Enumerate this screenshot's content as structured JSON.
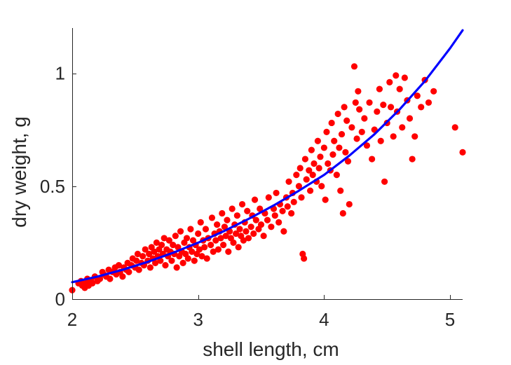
{
  "chart_data": {
    "type": "scatter",
    "title": "",
    "xlabel": "shell length, cm",
    "ylabel": "dry weight, g",
    "xlim": [
      2,
      5.1
    ],
    "ylim": [
      0,
      1.2
    ],
    "xticks": [
      2,
      3,
      4,
      5
    ],
    "xtick_labels": [
      "2",
      "3",
      "4",
      "5"
    ],
    "yticks": [
      0,
      0.5,
      1
    ],
    "ytick_labels": [
      "0",
      "0.5",
      "1"
    ],
    "grid": false,
    "legend": "none",
    "colors": {
      "points": "#ff0000",
      "fit": "#0000ff",
      "axes": "#262626"
    },
    "series": [
      {
        "type": "scatter",
        "points": [
          [
            2.0,
            0.04
          ],
          [
            2.05,
            0.07
          ],
          [
            2.07,
            0.08
          ],
          [
            2.08,
            0.06
          ],
          [
            2.1,
            0.05
          ],
          [
            2.11,
            0.07
          ],
          [
            2.12,
            0.09
          ],
          [
            2.13,
            0.06
          ],
          [
            2.15,
            0.08
          ],
          [
            2.16,
            0.07
          ],
          [
            2.18,
            0.1
          ],
          [
            2.2,
            0.08
          ],
          [
            2.22,
            0.09
          ],
          [
            2.24,
            0.12
          ],
          [
            2.25,
            0.11
          ],
          [
            2.27,
            0.1
          ],
          [
            2.29,
            0.13
          ],
          [
            2.3,
            0.09
          ],
          [
            2.32,
            0.12
          ],
          [
            2.34,
            0.14
          ],
          [
            2.35,
            0.11
          ],
          [
            2.37,
            0.15
          ],
          [
            2.38,
            0.12
          ],
          [
            2.4,
            0.1
          ],
          [
            2.41,
            0.14
          ],
          [
            2.43,
            0.13
          ],
          [
            2.44,
            0.16
          ],
          [
            2.45,
            0.12
          ],
          [
            2.47,
            0.15
          ],
          [
            2.48,
            0.18
          ],
          [
            2.5,
            0.14
          ],
          [
            2.51,
            0.17
          ],
          [
            2.52,
            0.2
          ],
          [
            2.53,
            0.13
          ],
          [
            2.55,
            0.16
          ],
          [
            2.56,
            0.19
          ],
          [
            2.57,
            0.15
          ],
          [
            2.58,
            0.22
          ],
          [
            2.6,
            0.17
          ],
          [
            2.61,
            0.2
          ],
          [
            2.62,
            0.14
          ],
          [
            2.63,
            0.23
          ],
          [
            2.64,
            0.18
          ],
          [
            2.65,
            0.21
          ],
          [
            2.66,
            0.16
          ],
          [
            2.67,
            0.25
          ],
          [
            2.68,
            0.19
          ],
          [
            2.69,
            0.22
          ],
          [
            2.7,
            0.17
          ],
          [
            2.71,
            0.24
          ],
          [
            2.72,
            0.2
          ],
          [
            2.73,
            0.27
          ],
          [
            2.74,
            0.15
          ],
          [
            2.75,
            0.22
          ],
          [
            2.76,
            0.19
          ],
          [
            2.77,
            0.26
          ],
          [
            2.78,
            0.21
          ],
          [
            2.79,
            0.17
          ],
          [
            2.8,
            0.24
          ],
          [
            2.81,
            0.2
          ],
          [
            2.82,
            0.28
          ],
          [
            2.83,
            0.14
          ],
          [
            2.84,
            0.23
          ],
          [
            2.85,
            0.19
          ],
          [
            2.86,
            0.3
          ],
          [
            2.87,
            0.21
          ],
          [
            2.88,
            0.16
          ],
          [
            2.89,
            0.25
          ],
          [
            2.9,
            0.2
          ],
          [
            2.91,
            0.27
          ],
          [
            2.92,
            0.18
          ],
          [
            2.93,
            0.23
          ],
          [
            2.94,
            0.31
          ],
          [
            2.95,
            0.21
          ],
          [
            2.96,
            0.26
          ],
          [
            2.97,
            0.17
          ],
          [
            2.98,
            0.24
          ],
          [
            2.99,
            0.2
          ],
          [
            3.0,
            0.29
          ],
          [
            3.01,
            0.22
          ],
          [
            3.02,
            0.34
          ],
          [
            3.03,
            0.19
          ],
          [
            3.04,
            0.26
          ],
          [
            3.05,
            0.23
          ],
          [
            3.06,
            0.31
          ],
          [
            3.07,
            0.18
          ],
          [
            3.08,
            0.27
          ],
          [
            3.1,
            0.24
          ],
          [
            3.11,
            0.36
          ],
          [
            3.12,
            0.21
          ],
          [
            3.13,
            0.29
          ],
          [
            3.14,
            0.26
          ],
          [
            3.15,
            0.33
          ],
          [
            3.16,
            0.22
          ],
          [
            3.17,
            0.3
          ],
          [
            3.18,
            0.27
          ],
          [
            3.19,
            0.38
          ],
          [
            3.2,
            0.24
          ],
          [
            3.21,
            0.32
          ],
          [
            3.22,
            0.28
          ],
          [
            3.23,
            0.35
          ],
          [
            3.24,
            0.21
          ],
          [
            3.25,
            0.3
          ],
          [
            3.26,
            0.27
          ],
          [
            3.27,
            0.4
          ],
          [
            3.28,
            0.25
          ],
          [
            3.29,
            0.33
          ],
          [
            3.3,
            0.29
          ],
          [
            3.31,
            0.37
          ],
          [
            3.32,
            0.23
          ],
          [
            3.33,
            0.31
          ],
          [
            3.34,
            0.28
          ],
          [
            3.35,
            0.42
          ],
          [
            3.36,
            0.26
          ],
          [
            3.37,
            0.34
          ],
          [
            3.38,
            0.3
          ],
          [
            3.39,
            0.39
          ],
          [
            3.4,
            0.27
          ],
          [
            3.42,
            0.32
          ],
          [
            3.43,
            0.37
          ],
          [
            3.44,
            0.29
          ],
          [
            3.45,
            0.44
          ],
          [
            3.46,
            0.35
          ],
          [
            3.48,
            0.31
          ],
          [
            3.49,
            0.4
          ],
          [
            3.5,
            0.33
          ],
          [
            3.52,
            0.28
          ],
          [
            3.53,
            0.38
          ],
          [
            3.55,
            0.35
          ],
          [
            3.56,
            0.45
          ],
          [
            3.58,
            0.32
          ],
          [
            3.6,
            0.4
          ],
          [
            3.61,
            0.37
          ],
          [
            3.62,
            0.47
          ],
          [
            3.64,
            0.34
          ],
          [
            3.65,
            0.42
          ],
          [
            3.67,
            0.39
          ],
          [
            3.68,
            0.3
          ],
          [
            3.7,
            0.45
          ],
          [
            3.71,
            0.41
          ],
          [
            3.72,
            0.52
          ],
          [
            3.74,
            0.38
          ],
          [
            3.75,
            0.47
          ],
          [
            3.76,
            0.43
          ],
          [
            3.78,
            0.55
          ],
          [
            3.8,
            0.5
          ],
          [
            3.81,
            0.58
          ],
          [
            3.82,
            0.45
          ],
          [
            3.83,
            0.2
          ],
          [
            3.84,
            0.18
          ],
          [
            3.85,
            0.62
          ],
          [
            3.86,
            0.53
          ],
          [
            3.88,
            0.57
          ],
          [
            3.89,
            0.48
          ],
          [
            3.9,
            0.66
          ],
          [
            3.91,
            0.55
          ],
          [
            3.92,
            0.6
          ],
          [
            3.94,
            0.52
          ],
          [
            3.95,
            0.7
          ],
          [
            3.96,
            0.58
          ],
          [
            3.97,
            0.63
          ],
          [
            3.98,
            0.5
          ],
          [
            4.0,
            0.67
          ],
          [
            4.01,
            0.44
          ],
          [
            4.02,
            0.74
          ],
          [
            4.03,
            0.6
          ],
          [
            4.05,
            0.57
          ],
          [
            4.06,
            0.78
          ],
          [
            4.07,
            0.64
          ],
          [
            4.08,
            0.7
          ],
          [
            4.1,
            0.55
          ],
          [
            4.11,
            0.82
          ],
          [
            4.12,
            0.67
          ],
          [
            4.13,
            0.48
          ],
          [
            4.14,
            0.73
          ],
          [
            4.15,
            0.38
          ],
          [
            4.16,
            0.85
          ],
          [
            4.17,
            0.65
          ],
          [
            4.18,
            0.79
          ],
          [
            4.19,
            0.61
          ],
          [
            4.2,
            0.42
          ],
          [
            4.22,
            0.76
          ],
          [
            4.24,
            1.03
          ],
          [
            4.25,
            0.87
          ],
          [
            4.26,
            0.71
          ],
          [
            4.27,
            0.92
          ],
          [
            4.28,
            0.84
          ],
          [
            4.3,
            0.74
          ],
          [
            4.32,
            0.8
          ],
          [
            4.34,
            0.68
          ],
          [
            4.36,
            0.87
          ],
          [
            4.38,
            0.62
          ],
          [
            4.4,
            0.75
          ],
          [
            4.42,
            0.83
          ],
          [
            4.44,
            0.93
          ],
          [
            4.45,
            0.7
          ],
          [
            4.47,
            0.86
          ],
          [
            4.48,
            0.52
          ],
          [
            4.5,
            0.78
          ],
          [
            4.52,
            0.96
          ],
          [
            4.53,
            0.85
          ],
          [
            4.55,
            0.72
          ],
          [
            4.57,
            0.99
          ],
          [
            4.58,
            0.83
          ],
          [
            4.6,
            0.93
          ],
          [
            4.62,
            0.76
          ],
          [
            4.64,
            0.98
          ],
          [
            4.66,
            0.88
          ],
          [
            4.68,
            0.8
          ],
          [
            4.7,
            0.62
          ],
          [
            4.72,
            0.72
          ],
          [
            4.74,
            0.9
          ],
          [
            4.77,
            0.85
          ],
          [
            4.8,
            0.97
          ],
          [
            4.83,
            0.87
          ],
          [
            4.87,
            0.92
          ],
          [
            5.04,
            0.76
          ],
          [
            5.1,
            0.65
          ]
        ]
      },
      {
        "type": "line",
        "points": [
          [
            2.0,
            0.075
          ],
          [
            2.2,
            0.1
          ],
          [
            2.4,
            0.13
          ],
          [
            2.6,
            0.165
          ],
          [
            2.8,
            0.205
          ],
          [
            3.0,
            0.25
          ],
          [
            3.2,
            0.3
          ],
          [
            3.4,
            0.355
          ],
          [
            3.6,
            0.415
          ],
          [
            3.8,
            0.48
          ],
          [
            4.0,
            0.55
          ],
          [
            4.2,
            0.635
          ],
          [
            4.4,
            0.73
          ],
          [
            4.6,
            0.84
          ],
          [
            4.8,
            0.965
          ],
          [
            5.0,
            1.11
          ],
          [
            5.1,
            1.19
          ]
        ]
      }
    ]
  }
}
